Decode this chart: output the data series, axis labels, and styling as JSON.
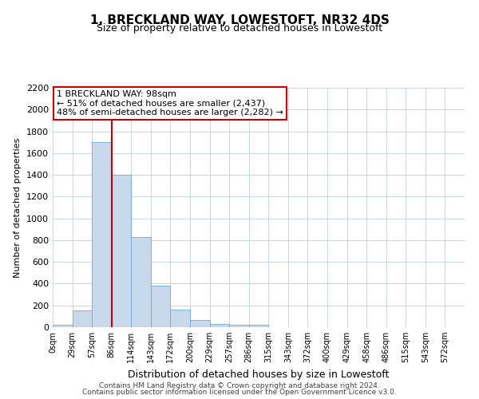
{
  "title": "1, BRECKLAND WAY, LOWESTOFT, NR32 4DS",
  "subtitle": "Size of property relative to detached houses in Lowestoft",
  "xlabel": "Distribution of detached houses by size in Lowestoft",
  "ylabel": "Number of detached properties",
  "bar_labels": [
    "0sqm",
    "29sqm",
    "57sqm",
    "86sqm",
    "114sqm",
    "143sqm",
    "172sqm",
    "200sqm",
    "229sqm",
    "257sqm",
    "286sqm",
    "315sqm",
    "343sqm",
    "372sqm",
    "400sqm",
    "429sqm",
    "458sqm",
    "486sqm",
    "515sqm",
    "543sqm",
    "572sqm"
  ],
  "bar_values": [
    20,
    155,
    1700,
    1400,
    830,
    380,
    160,
    65,
    30,
    25,
    20,
    0,
    0,
    0,
    0,
    0,
    0,
    0,
    0,
    0,
    0
  ],
  "bar_color": "#c8d9ee",
  "bar_edge_color": "#6baed6",
  "annotation_line1": "1 BRECKLAND WAY: 98sqm",
  "annotation_line2": "← 51% of detached houses are smaller (2,437)",
  "annotation_line3": "48% of semi-detached houses are larger (2,282) →",
  "vline_x": 3,
  "vline_color": "#cc0000",
  "ylim": [
    0,
    2200
  ],
  "yticks": [
    0,
    200,
    400,
    600,
    800,
    1000,
    1200,
    1400,
    1600,
    1800,
    2000,
    2200
  ],
  "footer1": "Contains HM Land Registry data © Crown copyright and database right 2024.",
  "footer2": "Contains public sector information licensed under the Open Government Licence v3.0.",
  "background_color": "#ffffff",
  "grid_color": "#ccd5e0",
  "title_fontsize": 11,
  "subtitle_fontsize": 9,
  "ylabel_fontsize": 8,
  "xlabel_fontsize": 9,
  "tick_fontsize": 8,
  "ann_fontsize": 8
}
